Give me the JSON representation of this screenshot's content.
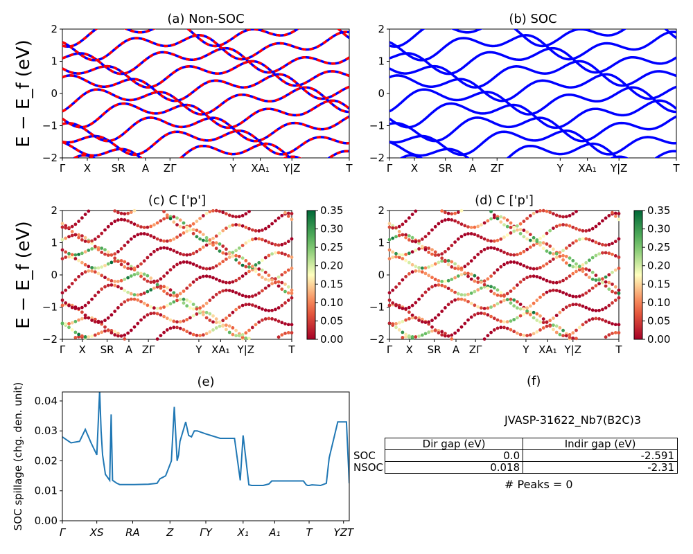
{
  "chart_data": [
    {
      "id": "a",
      "type": "line",
      "title": "(a) Non-SOC",
      "ylabel": "E − E_f (eV)",
      "ylim": [
        -2,
        2
      ],
      "yticks": [
        "−2",
        "−1",
        "0",
        "1",
        "2"
      ],
      "xticks": [
        "Γ",
        "X",
        "SR",
        "A",
        "ZΓ",
        "Y",
        "XA₁",
        "Y|Z",
        "T"
      ],
      "series": [
        {
          "color": "#0000ff"
        },
        {
          "color": "#ff0000"
        }
      ]
    },
    {
      "id": "b",
      "type": "line",
      "title": "(b) SOC",
      "ylim": [
        -2,
        2
      ],
      "yticks": [
        "−2",
        "−1",
        "0",
        "1",
        "2"
      ],
      "xticks": [
        "Γ",
        "X",
        "SR",
        "A",
        "ZΓ",
        "Y",
        "XA₁",
        "Y|Z",
        "T"
      ],
      "series": [
        {
          "color": "#0000ff"
        }
      ]
    },
    {
      "id": "c",
      "type": "scatter",
      "title": "(c)  C ['p']",
      "ylabel": "E − E_f (eV)",
      "ylim": [
        -2,
        2
      ],
      "yticks": [
        "−2",
        "−1",
        "0",
        "1",
        "2"
      ],
      "xticks": [
        "Γ",
        "X",
        "SR",
        "A",
        "ZΓ",
        "Y",
        "XA₁",
        "Y|Z",
        "T"
      ],
      "colorbar": {
        "range": [
          0,
          0.35
        ],
        "ticks": [
          "0.00",
          "0.05",
          "0.10",
          "0.15",
          "0.20",
          "0.25",
          "0.30",
          "0.35"
        ],
        "colormap": "RdYlGn"
      }
    },
    {
      "id": "d",
      "type": "scatter",
      "title": "(d) C ['p']",
      "ylim": [
        -2,
        2
      ],
      "yticks": [
        "−2",
        "−1",
        "0",
        "1",
        "2"
      ],
      "xticks": [
        "Γ",
        "X",
        "SR",
        "A",
        "ZΓ",
        "Y",
        "XA₁",
        "Y|Z",
        "T"
      ],
      "colorbar": {
        "range": [
          0,
          0.35
        ],
        "ticks": [
          "0.00",
          "0.05",
          "0.10",
          "0.15",
          "0.20",
          "0.25",
          "0.30",
          "0.35"
        ],
        "colormap": "RdYlGn"
      }
    },
    {
      "id": "e",
      "type": "line",
      "title": "(e)",
      "ylabel": "SOC spillage (chg. den. unit)",
      "ylim": [
        0,
        0.043
      ],
      "yticks": [
        "0.00",
        "0.01",
        "0.02",
        "0.03",
        "0.04"
      ],
      "xticks": [
        "Γ",
        "XS",
        "RA",
        "Z",
        "ΓY",
        "X₁",
        "A₁",
        "T",
        "YZT"
      ],
      "color": "#1f77b4",
      "x": [
        0,
        0.03,
        0.06,
        0.08,
        0.1,
        0.12,
        0.13,
        0.135,
        0.14,
        0.15,
        0.165,
        0.17,
        0.175,
        0.19,
        0.2,
        0.25,
        0.3,
        0.33,
        0.34,
        0.35,
        0.36,
        0.37,
        0.38,
        0.39,
        0.4,
        0.405,
        0.41,
        0.43,
        0.44,
        0.45,
        0.46,
        0.47,
        0.5,
        0.55,
        0.6,
        0.62,
        0.63,
        0.65,
        0.66,
        0.7,
        0.72,
        0.73,
        0.75,
        0.8,
        0.84,
        0.85,
        0.855,
        0.86,
        0.87,
        0.9,
        0.92,
        0.93,
        0.96,
        0.97,
        0.98,
        0.99,
        1.0
      ],
      "y": [
        0.028,
        0.026,
        0.0265,
        0.0305,
        0.026,
        0.022,
        0.0435,
        0.03,
        0.022,
        0.0155,
        0.0135,
        0.0355,
        0.0135,
        0.0125,
        0.0121,
        0.0121,
        0.0122,
        0.0125,
        0.014,
        0.0145,
        0.015,
        0.0175,
        0.02,
        0.038,
        0.02,
        0.022,
        0.0265,
        0.033,
        0.0285,
        0.028,
        0.03,
        0.03,
        0.029,
        0.0275,
        0.0275,
        0.0135,
        0.0285,
        0.012,
        0.0118,
        0.0118,
        0.0123,
        0.0133,
        0.0133,
        0.0133,
        0.0133,
        0.012,
        0.0118,
        0.0118,
        0.012,
        0.0118,
        0.0125,
        0.021,
        0.033,
        0.033,
        0.033,
        0.033,
        0.0125
      ]
    }
  ],
  "panel_f": {
    "title": "(f)",
    "jid": "JVASP-31622_Nb7(B2C)3",
    "table": {
      "headers": [
        "Dir gap (eV)",
        "Indir gap (eV)"
      ],
      "rows": [
        {
          "label": "SOC",
          "dir": "0.0",
          "indir": "-2.591"
        },
        {
          "label": "NSOC",
          "dir": "0.018",
          "indir": "-2.31"
        }
      ]
    },
    "peaks": "# Peaks = 0"
  }
}
